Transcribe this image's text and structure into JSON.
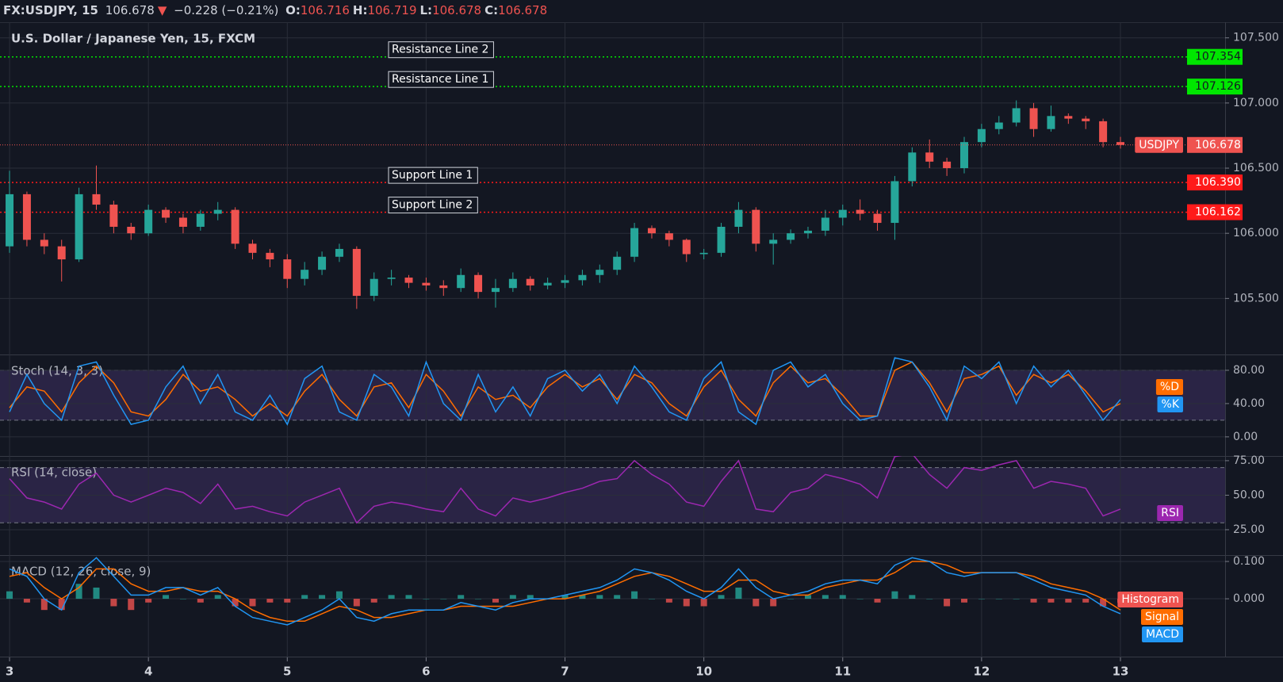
{
  "header": {
    "symbol": "FX:USDJPY, 15",
    "last": "106.678",
    "arrow": "▼",
    "change": "−0.228 (−0.21%)",
    "ohlc": [
      {
        "label": "O:",
        "value": "106.716"
      },
      {
        "label": "H:",
        "value": "106.719"
      },
      {
        "label": "L:",
        "value": "106.678"
      },
      {
        "label": "C:",
        "value": "106.678"
      }
    ]
  },
  "chart_data": [
    {
      "type": "candlestick",
      "title": "U.S. Dollar / Japanese Yen, 15, FXCM",
      "open": [
        105.9,
        106.3,
        105.95,
        105.9,
        105.8,
        106.3,
        106.22,
        106.05,
        106.0,
        106.18,
        106.12,
        106.05,
        106.15,
        106.18,
        105.92,
        105.85,
        105.8,
        105.65,
        105.72,
        105.82,
        105.88,
        105.52,
        105.65,
        105.66,
        105.62,
        105.6,
        105.58,
        105.68,
        105.55,
        105.58,
        105.65,
        105.6,
        105.62,
        105.64,
        105.68,
        105.72,
        105.82,
        106.04,
        106.0,
        105.95,
        105.84,
        105.85,
        106.05,
        106.18,
        105.92,
        105.95,
        106.0,
        106.02,
        106.12,
        106.18,
        106.15,
        106.08,
        106.4,
        106.62,
        106.55,
        106.5,
        106.7,
        106.8,
        106.85,
        106.96,
        106.8,
        106.9,
        106.88,
        106.86,
        106.7
      ],
      "high": [
        106.48,
        106.32,
        106.0,
        105.95,
        106.35,
        106.52,
        106.25,
        106.08,
        106.22,
        106.2,
        106.15,
        106.18,
        106.24,
        106.2,
        105.95,
        105.88,
        105.84,
        105.78,
        105.86,
        105.92,
        105.9,
        105.7,
        105.72,
        105.68,
        105.66,
        105.64,
        105.73,
        105.7,
        105.65,
        105.7,
        105.67,
        105.66,
        105.68,
        105.72,
        105.76,
        105.86,
        106.08,
        106.06,
        106.02,
        105.96,
        105.88,
        106.08,
        106.24,
        106.2,
        106.0,
        106.03,
        106.05,
        106.18,
        106.22,
        106.26,
        106.18,
        106.44,
        106.66,
        106.72,
        106.58,
        106.74,
        106.84,
        106.9,
        107.02,
        107.0,
        106.98,
        106.92,
        106.9,
        106.88,
        106.74
      ],
      "low": [
        105.85,
        105.9,
        105.84,
        105.63,
        105.78,
        106.18,
        106.0,
        105.95,
        105.98,
        106.08,
        106.0,
        106.02,
        106.1,
        105.88,
        105.8,
        105.74,
        105.58,
        105.6,
        105.68,
        105.78,
        105.42,
        105.48,
        105.6,
        105.58,
        105.56,
        105.52,
        105.55,
        105.5,
        105.43,
        105.55,
        105.56,
        105.57,
        105.58,
        105.6,
        105.62,
        105.68,
        105.78,
        105.96,
        105.9,
        105.78,
        105.8,
        105.82,
        106.0,
        105.86,
        105.76,
        105.92,
        105.96,
        105.98,
        106.06,
        106.1,
        106.02,
        105.95,
        106.36,
        106.5,
        106.44,
        106.46,
        106.66,
        106.76,
        106.82,
        106.74,
        106.78,
        106.84,
        106.8,
        106.66,
        106.65
      ],
      "close": [
        106.3,
        105.95,
        105.9,
        105.8,
        106.3,
        106.22,
        106.05,
        106.0,
        106.18,
        106.12,
        106.05,
        106.15,
        106.18,
        105.92,
        105.85,
        105.8,
        105.65,
        105.72,
        105.82,
        105.88,
        105.52,
        105.65,
        105.66,
        105.62,
        105.6,
        105.58,
        105.68,
        105.55,
        105.58,
        105.65,
        105.6,
        105.62,
        105.64,
        105.68,
        105.72,
        105.82,
        106.04,
        106.0,
        105.95,
        105.84,
        105.85,
        106.05,
        106.18,
        105.92,
        105.95,
        106.0,
        106.02,
        106.12,
        106.18,
        106.15,
        106.08,
        106.4,
        106.62,
        106.55,
        106.5,
        106.7,
        106.8,
        106.85,
        106.96,
        106.8,
        106.9,
        106.88,
        106.86,
        106.7,
        106.678
      ],
      "up_color": "#26a69a",
      "down_color": "#ef5350",
      "ylim": [
        105.07,
        107.62
      ],
      "yticks": [
        {
          "value": 105.5,
          "label": "105.500"
        },
        {
          "value": 106,
          "label": "106.000"
        },
        {
          "value": 106.5,
          "label": "106.500"
        },
        {
          "value": 107,
          "label": "107.000"
        },
        {
          "value": 107.5,
          "label": "107.500"
        }
      ],
      "lines": [
        {
          "label": "Resistance Line 2",
          "value": 107.354,
          "color": "#00e600"
        },
        {
          "label": "Resistance Line 1",
          "value": 107.126,
          "color": "#00e600"
        },
        {
          "label": "Support Line 1",
          "value": 106.39,
          "value_label": "106.390",
          "color": "#ff1a1a"
        },
        {
          "label": "Support Line 2",
          "value": 106.162,
          "color": "#ff1a1a"
        }
      ],
      "price_line": {
        "label": "USDJPY",
        "value": 106.678,
        "color": "#ef5350"
      },
      "grid": true
    },
    {
      "type": "line",
      "title": "Stoch (14, 3, 3)",
      "ylim": [
        -23,
        99
      ],
      "yticks": [
        {
          "value": 0,
          "label": "0.00"
        },
        {
          "value": 40,
          "label": "40.00"
        },
        {
          "value": 80,
          "label": "80.00"
        }
      ],
      "bands": [
        20,
        80
      ],
      "band_color": "#7e57c2",
      "grid": true,
      "series": [
        {
          "name": "%D",
          "color": "#ff6d00",
          "values": [
            35,
            60,
            55,
            30,
            65,
            85,
            65,
            30,
            25,
            45,
            75,
            55,
            60,
            45,
            25,
            40,
            25,
            55,
            75,
            45,
            25,
            60,
            65,
            35,
            75,
            55,
            25,
            60,
            45,
            50,
            35,
            60,
            75,
            60,
            70,
            45,
            75,
            65,
            40,
            25,
            60,
            80,
            45,
            25,
            65,
            85,
            65,
            70,
            50,
            25,
            25,
            80,
            90,
            65,
            30,
            70,
            75,
            85,
            50,
            75,
            65,
            75,
            55,
            30,
            40
          ]
        },
        {
          "name": "%K",
          "color": "#2196f3",
          "values": [
            30,
            75,
            40,
            20,
            85,
            90,
            50,
            15,
            20,
            60,
            85,
            40,
            75,
            30,
            20,
            50,
            15,
            70,
            85,
            30,
            20,
            75,
            60,
            25,
            90,
            40,
            20,
            75,
            30,
            60,
            25,
            70,
            80,
            55,
            75,
            40,
            85,
            60,
            30,
            20,
            70,
            90,
            30,
            15,
            80,
            90,
            60,
            75,
            40,
            20,
            25,
            95,
            90,
            60,
            20,
            85,
            70,
            90,
            40,
            85,
            60,
            80,
            50,
            20,
            45
          ]
        }
      ]
    },
    {
      "type": "line",
      "title": "RSI (14, close)",
      "ylim": [
        6.6,
        78.4
      ],
      "yticks": [
        {
          "value": 25,
          "label": "25.00"
        },
        {
          "value": 50,
          "label": "50.00"
        },
        {
          "value": 75,
          "label": "75.00"
        }
      ],
      "bands": [
        30,
        70
      ],
      "band_color": "#7e57c2",
      "grid": true,
      "series": [
        {
          "name": "RSI",
          "color": "#9c27b0",
          "values": [
            62,
            48,
            45,
            40,
            58,
            66,
            50,
            45,
            50,
            55,
            52,
            44,
            58,
            40,
            42,
            38,
            35,
            45,
            50,
            55,
            30,
            42,
            45,
            43,
            40,
            38,
            55,
            40,
            35,
            48,
            45,
            48,
            52,
            55,
            60,
            62,
            75,
            65,
            58,
            45,
            42,
            60,
            75,
            40,
            38,
            52,
            55,
            65,
            62,
            58,
            48,
            78,
            80,
            65,
            55,
            70,
            68,
            72,
            75,
            55,
            60,
            58,
            55,
            35,
            40
          ]
        }
      ]
    },
    {
      "type": "line",
      "title": "MACD (12, 26, close, 9)",
      "ylim": [
        -0.155,
        0.117
      ],
      "yticks": [
        {
          "value": 0,
          "label": "0.000"
        },
        {
          "value": 0.1,
          "label": "0.100"
        }
      ],
      "grid": true,
      "xlim": [
        -0.55,
        70.03
      ],
      "xticks": [
        {
          "value": 0,
          "label": "3"
        },
        {
          "value": 8,
          "label": "4"
        },
        {
          "value": 16,
          "label": "5"
        },
        {
          "value": 24,
          "label": "6"
        },
        {
          "value": 32,
          "label": "7"
        },
        {
          "value": 40,
          "label": "10"
        },
        {
          "value": 48,
          "label": "11"
        },
        {
          "value": 56,
          "label": "12"
        },
        {
          "value": 64,
          "label": "13"
        }
      ],
      "series": [
        {
          "name": "Histogram",
          "type": "bar",
          "color": "#ef5350",
          "positive_color": "#26a69a",
          "values": [
            0.02,
            -0.01,
            -0.03,
            -0.03,
            0.04,
            0.03,
            -0.02,
            -0.03,
            -0.01,
            0.01,
            0,
            -0.01,
            0.01,
            -0.02,
            -0.02,
            -0.01,
            -0.01,
            0.01,
            0.01,
            0.02,
            -0.02,
            -0.01,
            0.01,
            0.01,
            0,
            0,
            0.01,
            0,
            -0.01,
            0.01,
            0.01,
            0,
            0.01,
            0.01,
            0.01,
            0.01,
            0.02,
            0,
            -0.01,
            -0.02,
            -0.02,
            0.01,
            0.03,
            -0.02,
            -0.02,
            0,
            0.01,
            0.01,
            0.01,
            0,
            -0.01,
            0.02,
            0.01,
            0,
            -0.02,
            -0.01,
            0,
            0,
            0,
            -0.01,
            -0.01,
            -0.01,
            -0.01,
            -0.02,
            -0.01
          ]
        },
        {
          "name": "Signal",
          "color": "#ff6d00",
          "values": [
            0.06,
            0.07,
            0.03,
            0.0,
            0.03,
            0.08,
            0.08,
            0.04,
            0.02,
            0.02,
            0.03,
            0.02,
            0.02,
            0.0,
            -0.03,
            -0.05,
            -0.06,
            -0.06,
            -0.04,
            -0.02,
            -0.03,
            -0.05,
            -0.05,
            -0.04,
            -0.03,
            -0.03,
            -0.02,
            -0.02,
            -0.02,
            -0.02,
            -0.01,
            0.0,
            0.0,
            0.01,
            0.02,
            0.04,
            0.06,
            0.07,
            0.06,
            0.04,
            0.02,
            0.02,
            0.05,
            0.05,
            0.02,
            0.01,
            0.01,
            0.03,
            0.04,
            0.05,
            0.05,
            0.07,
            0.1,
            0.1,
            0.09,
            0.07,
            0.07,
            0.07,
            0.07,
            0.06,
            0.04,
            0.03,
            0.02,
            0.0,
            -0.03
          ]
        },
        {
          "name": "MACD",
          "color": "#2196f3",
          "values": [
            0.08,
            0.06,
            0.0,
            -0.03,
            0.07,
            0.11,
            0.06,
            0.01,
            0.01,
            0.03,
            0.03,
            0.01,
            0.03,
            -0.02,
            -0.05,
            -0.06,
            -0.07,
            -0.05,
            -0.03,
            0.0,
            -0.05,
            -0.06,
            -0.04,
            -0.03,
            -0.03,
            -0.03,
            -0.01,
            -0.02,
            -0.03,
            -0.01,
            0.0,
            0.0,
            0.01,
            0.02,
            0.03,
            0.05,
            0.08,
            0.07,
            0.05,
            0.02,
            0.0,
            0.03,
            0.08,
            0.03,
            0.0,
            0.01,
            0.02,
            0.04,
            0.05,
            0.05,
            0.04,
            0.09,
            0.11,
            0.1,
            0.07,
            0.06,
            0.07,
            0.07,
            0.07,
            0.05,
            0.03,
            0.02,
            0.01,
            -0.02,
            -0.04
          ]
        }
      ]
    }
  ]
}
